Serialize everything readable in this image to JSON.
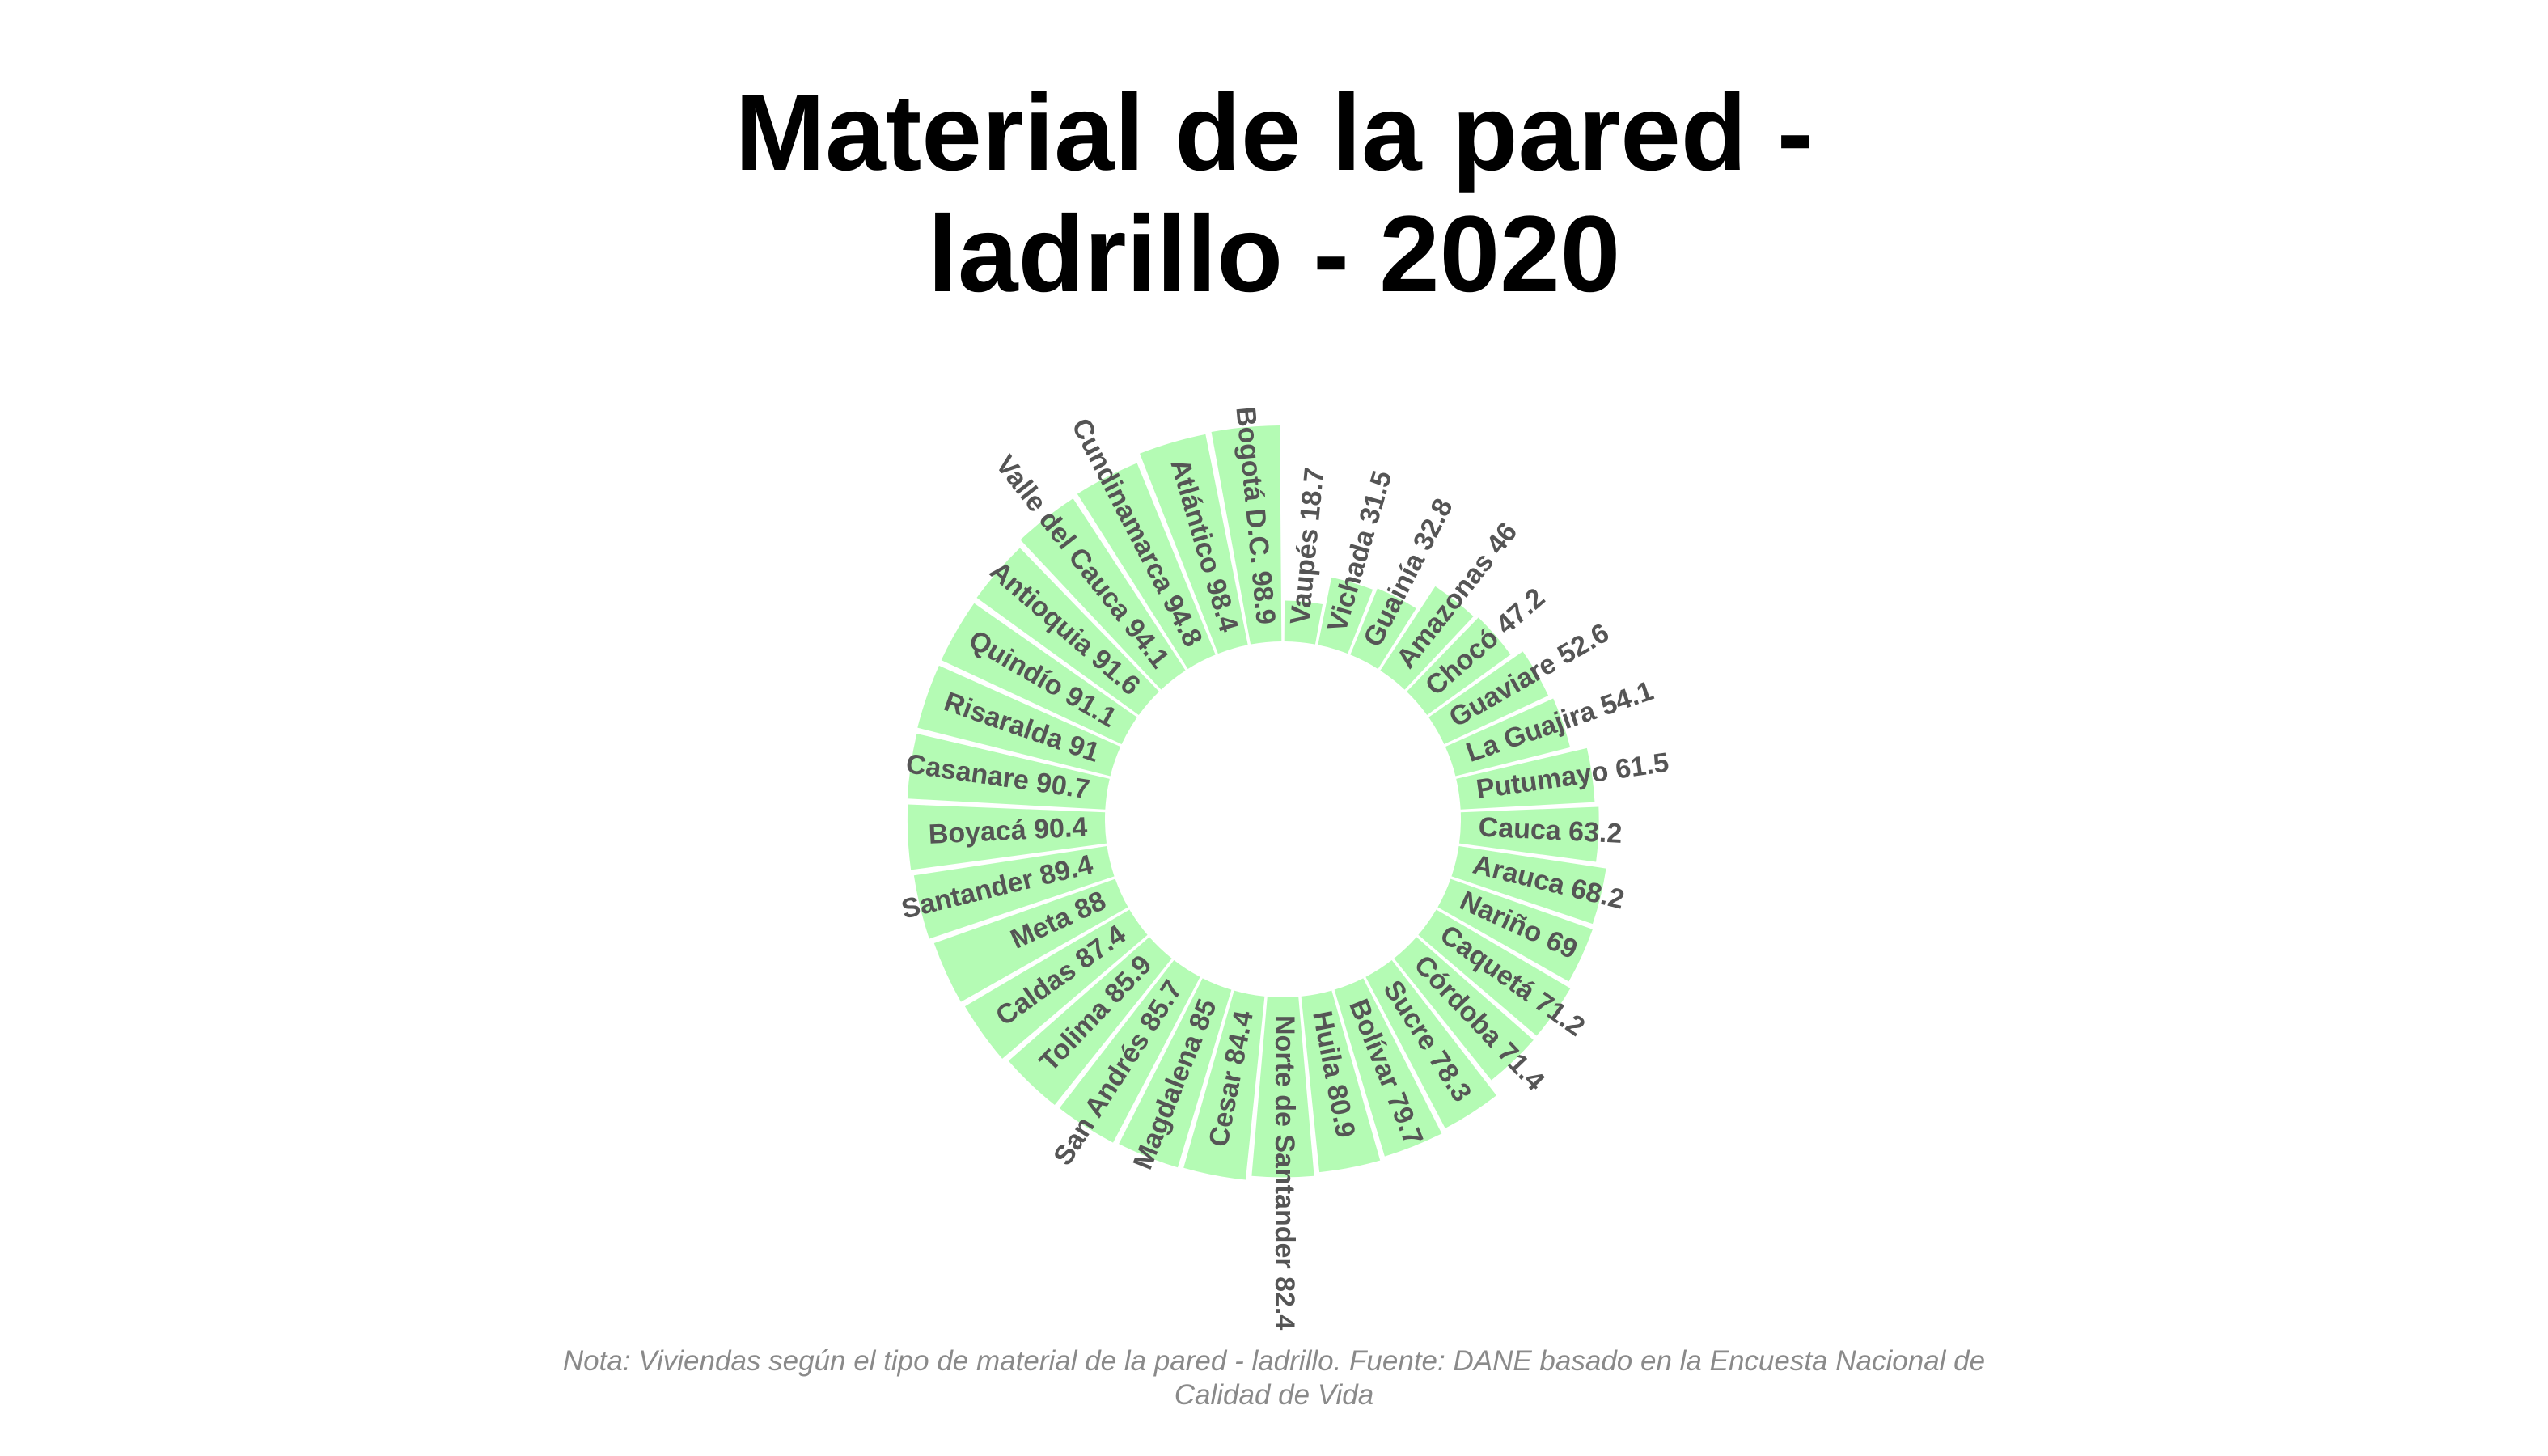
{
  "chart_data": {
    "type": "bar",
    "subtype": "circular",
    "title_line1": "Material de la pared -",
    "title_line2": "ladrillo - 2020",
    "note": "Nota: Viviendas según el tipo de material de la pared - ladrillo. Fuente: DANE basado en la Encuesta Nacional de Calidad de Vida",
    "bar_color": "#b4fbb4",
    "label_color": "#555555",
    "ylim": [
      0,
      100
    ],
    "categories": [
      "Vaupés",
      "Vichada",
      "Guainía",
      "Amazonas",
      "Chocó",
      "Guaviare",
      "La Guajira",
      "Putumayo",
      "Cauca",
      "Arauca",
      "Nariño",
      "Caquetá",
      "Córdoba",
      "Sucre",
      "Bolívar",
      "Huila",
      "Norte de Santander",
      "Cesar",
      "Magdalena",
      "San Andrés",
      "Tolima",
      "Caldas",
      "Meta",
      "Santander",
      "Boyacá",
      "Casanare",
      "Risaralda",
      "Quindío",
      "Antioquia",
      "Valle del Cauca",
      "Cundinamarca",
      "Atlántico",
      "Bogotá D.C."
    ],
    "values": [
      18.7,
      31.5,
      32.8,
      46,
      47.2,
      52.6,
      54.1,
      61.5,
      63.2,
      68.2,
      69,
      71.2,
      71.4,
      78.3,
      79.7,
      80.9,
      82.4,
      84.4,
      85,
      85.7,
      85.9,
      87.4,
      88,
      89.4,
      90.4,
      90.7,
      91,
      91.1,
      91.6,
      94.1,
      94.8,
      98.4,
      98.9
    ]
  }
}
